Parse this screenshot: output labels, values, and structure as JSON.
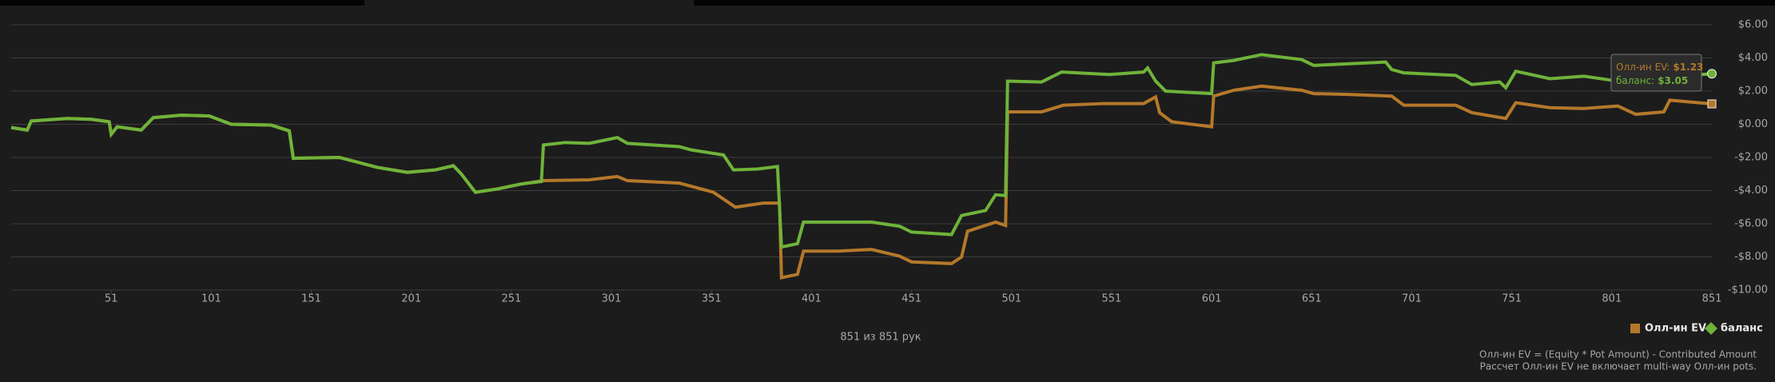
{
  "chart_data": {
    "type": "line",
    "xlim": [
      1,
      851
    ],
    "xticks": [
      51,
      101,
      151,
      201,
      251,
      301,
      351,
      401,
      451,
      501,
      551,
      601,
      651,
      701,
      751,
      801,
      851
    ],
    "ylim": [
      -10,
      6
    ],
    "yticks": [
      {
        "value": -10,
        "label": "-$10.00"
      },
      {
        "value": -8,
        "label": "-$8.00"
      },
      {
        "value": -6,
        "label": "-$6.00"
      },
      {
        "value": -4,
        "label": "-$4.00"
      },
      {
        "value": -2,
        "label": "-$2.00"
      },
      {
        "value": 0,
        "label": "$0.00"
      },
      {
        "value": 2,
        "label": "$2.00"
      },
      {
        "value": 4,
        "label": "$4.00"
      },
      {
        "value": 6,
        "label": "$6.00"
      }
    ],
    "grid": true,
    "legend": "bottom-right",
    "series": [
      {
        "name": "Олл-ин EV",
        "color": "#b5782a",
        "x": [
          1,
          9,
          11,
          29,
          41,
          50,
          51,
          54,
          66,
          72,
          86,
          100,
          111,
          131,
          140,
          142,
          165,
          184,
          199,
          213,
          222,
          226,
          233,
          244,
          256,
          267,
          290,
          304,
          309,
          335,
          352,
          363,
          377,
          385,
          386,
          394,
          397,
          414,
          431,
          445,
          451,
          471,
          476,
          479,
          493,
          498,
          499,
          516,
          527,
          547,
          567,
          573,
          575,
          581,
          601,
          602,
          612,
          626,
          646,
          652,
          669,
          691,
          697,
          723,
          731,
          748,
          753,
          770,
          787,
          804,
          813,
          827,
          830,
          851
        ],
        "values": [
          -0.2,
          -0.35,
          0.2,
          0.35,
          0.3,
          0.15,
          -0.6,
          -0.15,
          -0.35,
          0.4,
          0.55,
          0.5,
          0,
          -0.05,
          -0.4,
          -2.05,
          -2.0,
          -2.6,
          -2.9,
          -2.75,
          -2.5,
          -3.0,
          -4.1,
          -3.9,
          -3.6,
          -3.4,
          -3.35,
          -3.15,
          -3.4,
          -3.55,
          -4.1,
          -5.0,
          -4.75,
          -4.75,
          -9.25,
          -9.05,
          -7.65,
          -7.65,
          -7.55,
          -7.95,
          -8.3,
          -8.4,
          -8.0,
          -6.45,
          -5.9,
          -6.1,
          0.75,
          0.75,
          1.15,
          1.25,
          1.25,
          1.65,
          0.7,
          0.15,
          -0.15,
          1.7,
          2.05,
          2.3,
          2.05,
          1.85,
          1.8,
          1.7,
          1.15,
          1.15,
          0.7,
          0.35,
          1.3,
          1.0,
          0.95,
          1.1,
          0.6,
          0.75,
          1.45,
          1.23
        ]
      },
      {
        "name": "баланс",
        "color": "#6fb33a",
        "x": [
          1,
          9,
          11,
          29,
          41,
          50,
          51,
          54,
          66,
          72,
          86,
          100,
          111,
          131,
          140,
          142,
          165,
          184,
          199,
          213,
          222,
          226,
          233,
          244,
          256,
          266,
          267,
          278,
          290,
          304,
          309,
          335,
          341,
          357,
          362,
          374,
          384,
          386,
          394,
          397,
          414,
          431,
          445,
          451,
          471,
          476,
          488,
          493,
          498,
          499,
          516,
          526,
          550,
          567,
          569,
          573,
          578,
          601,
          602,
          612,
          626,
          646,
          652,
          688,
          691,
          697,
          723,
          731,
          745,
          748,
          753,
          770,
          787,
          804,
          851
        ],
        "values": [
          -0.2,
          -0.35,
          0.2,
          0.35,
          0.3,
          0.15,
          -0.6,
          -0.15,
          -0.35,
          0.4,
          0.55,
          0.5,
          0,
          -0.05,
          -0.4,
          -2.05,
          -2.0,
          -2.6,
          -2.9,
          -2.75,
          -2.5,
          -3.0,
          -4.1,
          -3.9,
          -3.6,
          -3.45,
          -1.25,
          -1.1,
          -1.15,
          -0.8,
          -1.15,
          -1.35,
          -1.55,
          -1.85,
          -2.75,
          -2.7,
          -2.55,
          -7.4,
          -7.2,
          -5.9,
          -5.9,
          -5.9,
          -6.15,
          -6.5,
          -6.65,
          -5.5,
          -5.2,
          -4.25,
          -4.3,
          2.6,
          2.55,
          3.15,
          3.0,
          3.15,
          3.4,
          2.6,
          2.0,
          1.85,
          3.7,
          3.85,
          4.2,
          3.9,
          3.55,
          3.75,
          3.3,
          3.1,
          2.95,
          2.4,
          2.55,
          2.2,
          3.2,
          2.75,
          2.9,
          2.6,
          3.05
        ]
      }
    ],
    "tooltip": [
      {
        "label": "Олл-ин EV:",
        "value": "$1.23"
      },
      {
        "label": "баланс:",
        "value": "$3.05"
      }
    ],
    "hand_count": "851 из 851 рук",
    "footnotes": [
      "Олл-ин EV = (Equity * Pot Amount) - Contributed Amount",
      "Рассчет Олл-ин EV не включает multi-way Олл-ин pots."
    ]
  }
}
